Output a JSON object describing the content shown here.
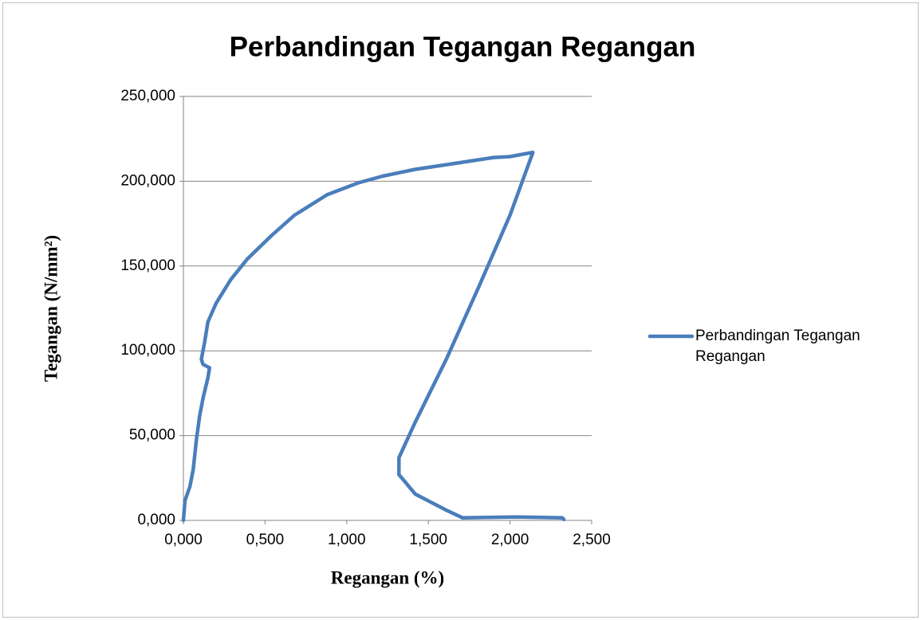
{
  "chart_data": {
    "type": "scatter",
    "title": "Perbandingan Tegangan Regangan",
    "x_label": "Regangan (%)",
    "y_label": "Tegangan (N/mm²)",
    "x": [
      0,
      0.01,
      0.04,
      0.06,
      0.08,
      0.1,
      0.12,
      0.15,
      0.16,
      0.12,
      0.11,
      0.13,
      0.15,
      0.2,
      0.29,
      0.39,
      0.54,
      0.68,
      0.88,
      1.07,
      1.22,
      1.42,
      1.66,
      1.9,
      2.0,
      2.14,
      2.0,
      1.81,
      1.61,
      1.42,
      1.32,
      1.32,
      1.42,
      1.61,
      1.71,
      2.05,
      2.32,
      2.33
    ],
    "series": [
      {
        "name": "Perbandingan Tegangan Regangan",
        "color": "#4a7ebb",
        "values": [
          0,
          11.7,
          20,
          30,
          48,
          62,
          72,
          84,
          90,
          92,
          95,
          105,
          117,
          128,
          142,
          154,
          168,
          180,
          192,
          199,
          203,
          207,
          210.5,
          214,
          214.5,
          217,
          180,
          138,
          95,
          58,
          37,
          27,
          15.5,
          6,
          1.5,
          2,
          1.5,
          0.5
        ]
      }
    ],
    "xlim": [
      0,
      2.5
    ],
    "xticks": [
      {
        "value": 0,
        "label": "0,000"
      },
      {
        "value": 0.5,
        "label": "0,500"
      },
      {
        "value": 1,
        "label": "1,000"
      },
      {
        "value": 1.5,
        "label": "1,500"
      },
      {
        "value": 2,
        "label": "2,000"
      },
      {
        "value": 2.5,
        "label": "2,500"
      }
    ],
    "ylim": [
      0,
      250
    ],
    "yticks": [
      {
        "value": 0,
        "label": "0,000"
      },
      {
        "value": 50,
        "label": "50,000"
      },
      {
        "value": 100,
        "label": "100,000"
      },
      {
        "value": 150,
        "label": "150,000"
      },
      {
        "value": 200,
        "label": "200,000"
      },
      {
        "value": 250,
        "label": "250,000"
      }
    ],
    "grid": true,
    "legend": "right"
  }
}
